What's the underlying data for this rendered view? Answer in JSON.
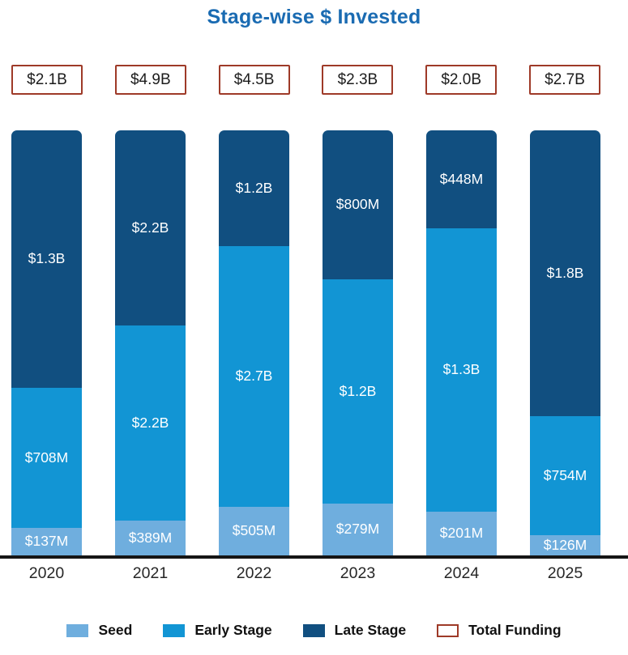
{
  "title": "Stage-wise $ Invested",
  "colors": {
    "title_blue": "#1A6BB2",
    "seed_blue": "#6FAEDE",
    "early_stage_blue": "#1295D4",
    "late_stage_blue": "#114F80",
    "total_box_border_red": "#9E3A28",
    "axis_black": "#151515",
    "bar_label_white": "#FFFFFF"
  },
  "chart_data": {
    "type": "bar",
    "variant": "100% stacked column, labels show absolute values",
    "title": "Stage-wise $ Invested",
    "categories": [
      "2020",
      "2021",
      "2022",
      "2023",
      "2024",
      "2025"
    ],
    "totals": {
      "name": "Total Funding",
      "labels": [
        "$2.1B",
        "$4.9B",
        "$4.5B",
        "$2.3B",
        "$2.0B",
        "$2.7B"
      ]
    },
    "series": [
      {
        "name": "Seed",
        "color": "#6FAEDE",
        "labels": [
          "$137M",
          "$389M",
          "$505M",
          "$279M",
          "$201M",
          "$126M"
        ],
        "values_musd": [
          137,
          389,
          505,
          279,
          201,
          126
        ]
      },
      {
        "name": "Early Stage",
        "color": "#1295D4",
        "labels": [
          "$708M",
          "$2.2B",
          "$2.7B",
          "$1.2B",
          "$1.3B",
          "$754M"
        ],
        "values_musd": [
          708,
          2200,
          2700,
          1200,
          1300,
          754
        ]
      },
      {
        "name": "Late Stage",
        "color": "#114F80",
        "labels": [
          "$1.3B",
          "$2.2B",
          "$1.2B",
          "$800M",
          "$448M",
          "$1.8B"
        ],
        "values_musd": [
          1300,
          2200,
          1200,
          800,
          448,
          1800
        ]
      }
    ],
    "stack_order_top_to_bottom": [
      "Late Stage",
      "Early Stage",
      "Seed"
    ],
    "legend": [
      {
        "label": "Seed",
        "swatch_color": "#6FAEDE",
        "swatch_style": "filled"
      },
      {
        "label": "Early Stage",
        "swatch_color": "#1295D4",
        "swatch_style": "filled"
      },
      {
        "label": "Late Stage",
        "swatch_color": "#114F80",
        "swatch_style": "filled"
      },
      {
        "label": "Total Funding",
        "swatch_color": "#9E3A28",
        "swatch_style": "outlined"
      }
    ],
    "axis": {
      "x_labels_position": "bottom",
      "gridlines": false,
      "legend_position": "bottom-center"
    }
  }
}
